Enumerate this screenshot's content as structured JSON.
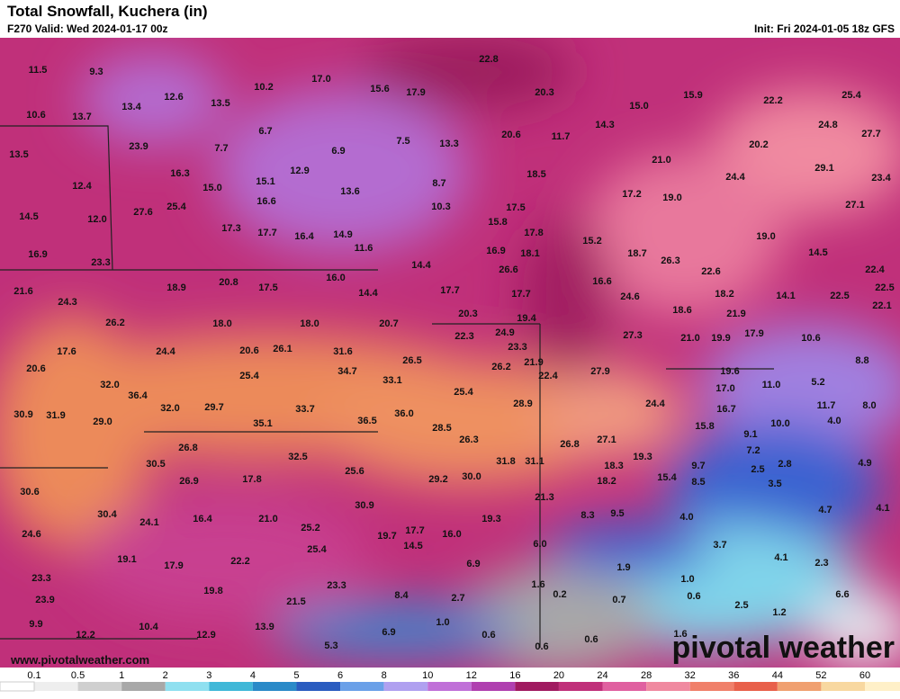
{
  "header": {
    "title": "Total Snowfall, Kuchera (in)",
    "valid": "F270 Valid: Wed 2024-01-17 00z",
    "init": "Init: Fri 2024-01-05 18z GFS"
  },
  "map": {
    "labels": [
      "11.5",
      "9.3",
      "22.8",
      "10.2",
      "17.0",
      "15.6",
      "17.9",
      "20.3",
      "15.9",
      "22.2",
      "25.4",
      "10.6",
      "13.7",
      "13.4",
      "12.6",
      "13.5",
      "15.0",
      "14.3",
      "24.8",
      "27.7",
      "6.7",
      "20.6",
      "11.7",
      "7.5",
      "13.3",
      "6.9",
      "20.2",
      "13.5",
      "23.9",
      "7.7",
      "21.0",
      "29.1",
      "23.4",
      "16.3",
      "12.9",
      "18.5",
      "24.4",
      "12.4",
      "15.0",
      "15.1",
      "13.6",
      "8.7",
      "17.2",
      "19.0",
      "16.6",
      "25.4",
      "10.3",
      "17.5",
      "27.1",
      "14.5",
      "12.0",
      "27.6",
      "17.3",
      "17.7",
      "16.4",
      "14.9",
      "15.8",
      "17.8",
      "15.2",
      "19.0",
      "16.9",
      "11.6",
      "16.9",
      "18.1",
      "18.7",
      "26.3",
      "14.5",
      "23.3",
      "14.4",
      "26.6",
      "22.6",
      "22.4",
      "18.9",
      "20.8",
      "17.5",
      "16.0",
      "16.6",
      "21.6",
      "24.6",
      "18.2",
      "14.1",
      "22.5",
      "22.5",
      "24.3",
      "14.4",
      "17.7",
      "17.7",
      "22.1",
      "18.0",
      "18.0",
      "26.2",
      "20.7",
      "20.3",
      "19.4",
      "18.6",
      "21.9",
      "17.6",
      "24.4",
      "20.6",
      "26.1",
      "31.6",
      "22.3",
      "24.9",
      "23.3",
      "27.3",
      "21.0",
      "19.9",
      "17.9",
      "10.6",
      "20.6",
      "25.4",
      "34.7",
      "26.5",
      "26.2",
      "21.9",
      "22.4",
      "27.9",
      "19.6",
      "8.8",
      "32.0",
      "33.1",
      "25.4",
      "17.0",
      "11.0",
      "5.2",
      "36.4",
      "32.0",
      "29.7",
      "33.7",
      "28.9",
      "24.4",
      "16.7",
      "11.7",
      "8.0",
      "30.9",
      "31.9",
      "29.0",
      "35.1",
      "36.5",
      "36.0",
      "28.5",
      "15.8",
      "10.0",
      "4.0",
      "26.3",
      "26.8",
      "27.1",
      "9.1",
      "26.8",
      "32.5",
      "19.3",
      "7.2",
      "30.5",
      "18.3",
      "31.8",
      "31.1",
      "9.7",
      "2.5",
      "2.8",
      "4.9",
      "25.6",
      "15.4",
      "8.5",
      "26.9",
      "17.8",
      "29.2",
      "30.0",
      "18.2",
      "3.5",
      "30.6",
      "21.3",
      "30.9",
      "4.7",
      "4.1",
      "30.4",
      "24.1",
      "16.4",
      "21.0",
      "19.3",
      "8.3",
      "9.5",
      "4.0",
      "24.6",
      "25.2",
      "17.7",
      "19.7",
      "16.0",
      "14.5",
      "6.0",
      "3.7",
      "19.1",
      "17.9",
      "25.4",
      "22.2",
      "6.9",
      "1.9",
      "4.1",
      "2.3",
      "23.3",
      "1.6",
      "1.0",
      "19.8",
      "23.3",
      "8.4",
      "0.2",
      "0.7",
      "0.6",
      "6.6",
      "23.9",
      "21.5",
      "2.7",
      "2.5",
      "9.9",
      "10.4",
      "13.9",
      "1.0",
      "1.2",
      "12.2",
      "12.9",
      "6.9",
      "0.6",
      "1.6",
      "0.6",
      "5.3",
      "0.6"
    ]
  },
  "footer": {
    "url": "www.pivotalweather.com",
    "logo": "pivotal weather"
  },
  "legend": {
    "ticks": [
      "0.1",
      "0.5",
      "1",
      "2",
      "3",
      "4",
      "5",
      "6",
      "8",
      "10",
      "12",
      "16",
      "20",
      "24",
      "28",
      "32",
      "36",
      "44",
      "52",
      "60"
    ]
  }
}
